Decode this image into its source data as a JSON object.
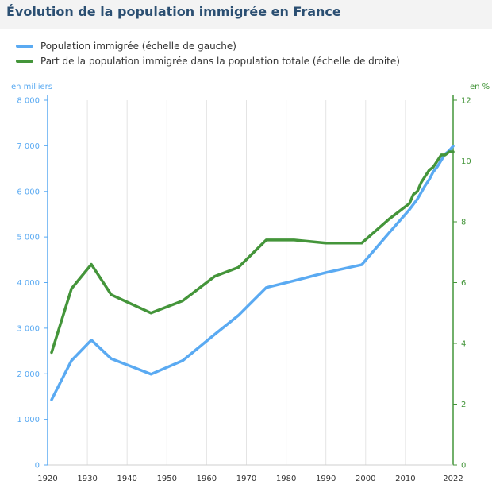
{
  "title": "Évolution de la population immigrée en France",
  "chart_data": {
    "type": "line",
    "title": "Évolution de la population immigrée en France",
    "xlabel": "",
    "y_left_unit": "en milliers",
    "y_right_unit": "en %",
    "xlim": [
      1920,
      2022
    ],
    "x_ticks": [
      "1920",
      "1930",
      "1940",
      "1950",
      "1960",
      "1970",
      "1980",
      "1990",
      "2000",
      "2010",
      "2022"
    ],
    "y_left_lim": [
      0,
      8000
    ],
    "y_left_ticks": [
      "0",
      "1 000",
      "2 000",
      "3 000",
      "4 000",
      "5 000",
      "6 000",
      "7 000",
      "8 000"
    ],
    "y_right_lim": [
      0,
      12
    ],
    "y_right_ticks": [
      "0",
      "2",
      "4",
      "6",
      "8",
      "10",
      "12"
    ],
    "grid": "vertical",
    "legend_position": "top-left",
    "series": [
      {
        "name": "Population immigrée (échelle de gauche)",
        "axis": "left",
        "color": "#5aaaf2",
        "x": [
          1921,
          1926,
          1931,
          1936,
          1946,
          1954,
          1962,
          1968,
          1975,
          1982,
          1990,
          1999,
          2006,
          2011,
          2013,
          2015,
          2016,
          2017,
          2018,
          2019,
          2020,
          2021,
          2022
        ],
        "values": [
          1430,
          2290,
          2740,
          2330,
          1990,
          2290,
          2860,
          3280,
          3890,
          4040,
          4220,
          4390,
          5100,
          5600,
          5830,
          6130,
          6260,
          6430,
          6540,
          6680,
          6820,
          6890,
          6990
        ]
      },
      {
        "name": "Part de la population immigrée dans la population totale (échelle de droite)",
        "axis": "right",
        "color": "#44953a",
        "x": [
          1921,
          1926,
          1931,
          1936,
          1946,
          1954,
          1962,
          1968,
          1975,
          1982,
          1990,
          1999,
          2006,
          2011,
          2012,
          2013,
          2014,
          2015,
          2016,
          2017,
          2018,
          2019,
          2020,
          2021,
          2022
        ],
        "values": [
          3.7,
          5.8,
          6.6,
          5.6,
          5.0,
          5.4,
          6.2,
          6.5,
          7.4,
          7.4,
          7.3,
          7.3,
          8.1,
          8.6,
          8.9,
          9.0,
          9.3,
          9.5,
          9.7,
          9.8,
          10.0,
          10.2,
          10.2,
          10.3,
          10.3
        ]
      }
    ]
  }
}
